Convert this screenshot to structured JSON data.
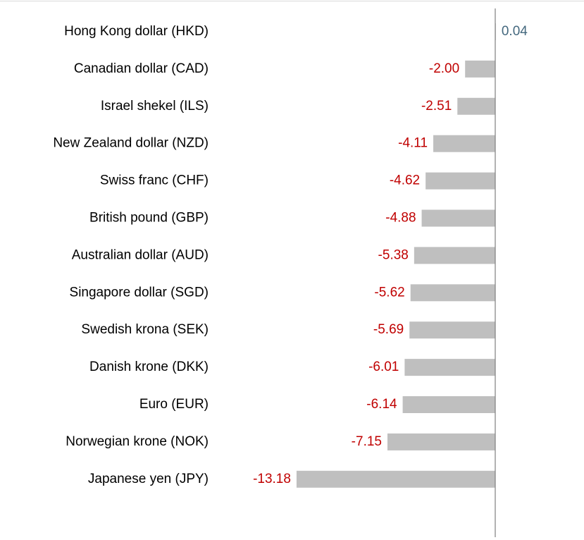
{
  "chart_data": {
    "type": "bar",
    "orientation": "horizontal",
    "categories": [
      "Hong Kong dollar (HKD)",
      "Canadian dollar (CAD)",
      "Israel shekel (ILS)",
      "New Zealand dollar (NZD)",
      "Swiss franc (CHF)",
      "British pound (GBP)",
      "Australian dollar (AUD)",
      "Singapore dollar (SGD)",
      "Swedish krona (SEK)",
      "Danish krone (DKK)",
      "Euro (EUR)",
      "Norwegian krone (NOK)",
      "Japanese yen (JPY)"
    ],
    "values": [
      0.04,
      -2.0,
      -2.51,
      -4.11,
      -4.62,
      -4.88,
      -5.38,
      -5.62,
      -5.69,
      -6.01,
      -6.14,
      -7.15,
      -13.18
    ],
    "value_labels": [
      "0.04",
      "-2.00",
      "-2.51",
      "-4.11",
      "-4.62",
      "-4.88",
      "-5.38",
      "-5.62",
      "-5.69",
      "-6.01",
      "-6.14",
      "-7.15",
      "-13.18"
    ],
    "color": "#bfbfbf",
    "positive_label_color": "#44687e",
    "negative_label_color": "#c00000"
  }
}
